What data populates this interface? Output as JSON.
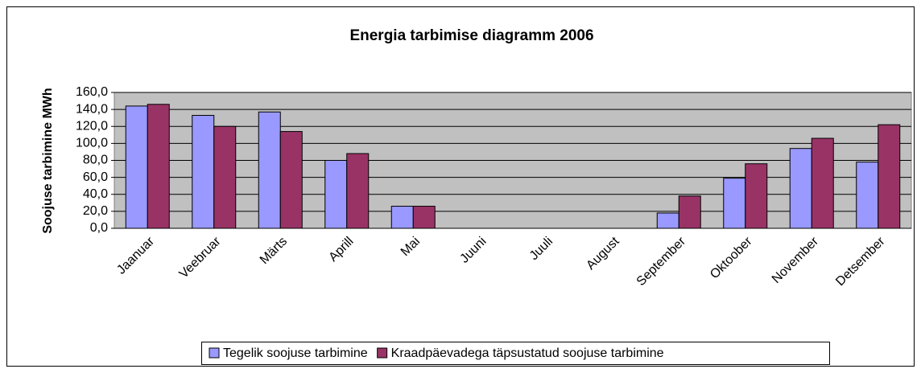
{
  "chart_data": {
    "type": "bar",
    "title": "Energia tarbimise diagramm 2006",
    "y_label": "Soojuse tarbimine MWh",
    "categories": [
      "Jaanuar",
      "Veebruar",
      "Märts",
      "Aprill",
      "Mai",
      "Juuni",
      "Juuli",
      "August",
      "September",
      "Oktoober",
      "November",
      "Detsember"
    ],
    "series": [
      {
        "name": "Tegelik soojuse tarbimine",
        "color": "#9999ff",
        "values": [
          144,
          133,
          137,
          80,
          26,
          0,
          0,
          0,
          18,
          59,
          94,
          78
        ]
      },
      {
        "name": "Kraadpäevadega täpsustatud soojuse tarbimine",
        "color": "#993366",
        "values": [
          146,
          120,
          114,
          88,
          26,
          0,
          0,
          0,
          38,
          76,
          106,
          122
        ]
      }
    ],
    "ylim": [
      0,
      160
    ],
    "yticks": [
      {
        "value": 0,
        "label": "0,0"
      },
      {
        "value": 20,
        "label": "20,0"
      },
      {
        "value": 40,
        "label": "40,0"
      },
      {
        "value": 60,
        "label": "60,0"
      },
      {
        "value": 80,
        "label": "80,0"
      },
      {
        "value": 100,
        "label": "100,0"
      },
      {
        "value": 120,
        "label": "120,0"
      },
      {
        "value": 140,
        "label": "140,0"
      },
      {
        "value": 160,
        "label": "160,0"
      }
    ],
    "grid": true,
    "legend": "bottom"
  }
}
